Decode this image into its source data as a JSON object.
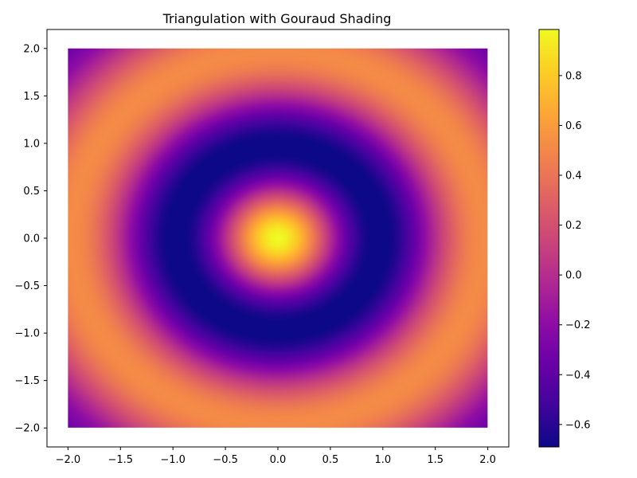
{
  "chart_data": {
    "type": "heatmap",
    "title": "Triangulation with Gouraud Shading",
    "xlabel": "",
    "ylabel": "",
    "xlim": [
      -2.2,
      2.2
    ],
    "ylim": [
      -2.2,
      2.2
    ],
    "data_extent": {
      "x": [
        -2.0,
        2.0
      ],
      "y": [
        -2.0,
        2.0
      ]
    },
    "x_ticks": [
      -2.0,
      -1.5,
      -1.0,
      -0.5,
      0.0,
      0.5,
      1.0,
      1.5,
      2.0
    ],
    "x_tick_labels": [
      "−2.0",
      "−1.5",
      "−1.0",
      "−0.5",
      "0.0",
      "0.5",
      "1.0",
      "1.5",
      "2.0"
    ],
    "y_ticks": [
      2.0,
      1.5,
      1.0,
      0.5,
      0.0,
      -0.5,
      -1.0,
      -1.5,
      -2.0
    ],
    "y_tick_labels": [
      "2.0",
      "1.5",
      "1.0",
      "0.5",
      "0.0",
      "−0.5",
      "−1.0",
      "−1.5",
      "−2.0"
    ],
    "field": "z = cos(π·r)·exp(−r/3), r = √(x²+y²)",
    "colormap": "plasma",
    "grid": false,
    "colorbar": {
      "placement": "right",
      "vmin": -0.69,
      "vmax": 0.985,
      "ticks": [
        0.8,
        0.6,
        0.4,
        0.2,
        0.0,
        -0.2,
        -0.4,
        -0.6
      ],
      "tick_labels": [
        "0.8",
        "0.6",
        "0.4",
        "0.2",
        "0.0",
        "−0.2",
        "−0.4",
        "−0.6"
      ]
    }
  }
}
